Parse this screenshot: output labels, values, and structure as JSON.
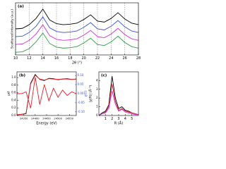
{
  "chart_data": [
    {
      "type": "line",
      "label": "(a)",
      "xlabel": "2θ (°)",
      "ylabel": "Scattered intensity (a.u.)",
      "x": [
        10,
        11,
        12,
        13,
        14,
        15,
        16,
        17,
        18,
        19,
        20,
        21,
        22,
        23,
        24,
        25,
        26,
        27,
        28
      ],
      "xlim": [
        10,
        28
      ],
      "xticks": [
        10,
        12,
        14,
        16,
        18,
        20,
        22,
        24,
        26,
        28
      ],
      "ylim": [
        0,
        10
      ],
      "grid": true,
      "series": [
        {
          "color": "#2e9e3e",
          "values": [
            0.5,
            0.6,
            1.2,
            2.5,
            4.2,
            2.2,
            1.5,
            1.3,
            1.4,
            1.6,
            2.3,
            3.2,
            2.0,
            1.8,
            2.5,
            3.6,
            2.4,
            1.6,
            1.3
          ]
        },
        {
          "color": "#d12fd1",
          "values": [
            2.0,
            2.1,
            2.8,
            4.0,
            5.8,
            3.7,
            3.0,
            2.8,
            2.9,
            3.1,
            3.8,
            4.7,
            3.5,
            3.3,
            4.0,
            5.1,
            3.9,
            3.1,
            2.8
          ]
        },
        {
          "color": "#3a4fd8",
          "values": [
            3.5,
            3.6,
            4.3,
            5.5,
            7.3,
            5.2,
            4.5,
            4.3,
            4.4,
            4.6,
            5.3,
            6.2,
            5.0,
            4.8,
            5.5,
            6.6,
            5.4,
            4.6,
            4.3
          ]
        },
        {
          "color": "#000000",
          "values": [
            5.0,
            5.1,
            5.8,
            7.0,
            8.8,
            6.7,
            6.0,
            5.8,
            5.9,
            6.1,
            6.8,
            7.7,
            6.5,
            6.3,
            7.0,
            8.1,
            6.9,
            6.1,
            5.8
          ]
        }
      ]
    },
    {
      "type": "line",
      "label": "(b)",
      "xlabel": "Energy (eV)",
      "ylabel": "μd",
      "y2label": "χ(E)",
      "x": [
        24320,
        24340,
        24360,
        24380,
        24400,
        24420,
        24440,
        24460,
        24480,
        24500,
        24520,
        24540,
        24560,
        24580
      ],
      "xlim": [
        24320,
        24580
      ],
      "xticks": [
        24350,
        24400,
        24450,
        24500,
        24550
      ],
      "ylim": [
        0,
        1.15
      ],
      "yticks": [
        {
          "value": 0,
          "label": "0.0"
        },
        {
          "value": 0.2,
          "label": "0.2"
        },
        {
          "value": 0.4,
          "label": "0.4"
        },
        {
          "value": 0.6,
          "label": "0.6"
        },
        {
          "value": 0.8,
          "label": "0.8"
        },
        {
          "value": 1,
          "label": "1.0"
        }
      ],
      "y2lim": [
        -0.12,
        0.12
      ],
      "y2ticks": [
        {
          "value": -0.1,
          "label": "-0.10"
        },
        {
          "value": -0.05,
          "label": "-0.05"
        },
        {
          "value": 0,
          "label": "0.00"
        },
        {
          "value": 0.05,
          "label": "0.05"
        },
        {
          "value": 0.1,
          "label": "0.10"
        }
      ],
      "series": [
        {
          "color": "#000000",
          "values": [
            0.02,
            0.03,
            0.05,
            0.85,
            1.08,
            0.95,
            0.92,
            0.98,
            0.97,
            0.94,
            0.96,
            0.97,
            0.95,
            0.96
          ]
        },
        {
          "color": "#e0202a",
          "values": [
            0.02,
            0.03,
            0.06,
            0.83,
            1.06,
            0.96,
            0.93,
            0.97,
            0.96,
            0.95,
            0.96,
            0.96,
            0.95,
            0.96
          ]
        },
        {
          "color": "#e0202a",
          "axis": "y2",
          "values": [
            0,
            0,
            0.01,
            -0.08,
            0.09,
            -0.06,
            0.05,
            -0.04,
            0.03,
            -0.02,
            0.02,
            -0.01,
            0.01,
            0
          ]
        }
      ]
    },
    {
      "type": "line",
      "label": "(c)",
      "xlabel": "R (Å)",
      "ylabel": "|χ(R)| (Å⁻³)",
      "x": [
        0,
        0.5,
        1,
        1.5,
        2,
        2.5,
        3,
        3.5,
        4,
        4.5,
        5,
        5.5,
        6
      ],
      "xlim": [
        0,
        6
      ],
      "xticks": [
        1,
        2,
        3,
        4,
        5
      ],
      "ylim": [
        0,
        5
      ],
      "yticks": [
        0,
        1,
        2,
        3,
        4
      ],
      "series": [
        {
          "color": "#000000",
          "values": [
            0,
            0.3,
            0.5,
            1.2,
            4.5,
            2.0,
            0.8,
            1.0,
            0.6,
            0.5,
            0.3,
            0.2,
            0.1
          ]
        },
        {
          "color": "#e0202a",
          "values": [
            0,
            0.2,
            0.4,
            1.0,
            3.6,
            1.6,
            0.6,
            0.8,
            0.5,
            0.4,
            0.3,
            0.2,
            0.1
          ]
        },
        {
          "color": "#d12fd1",
          "values": [
            0,
            0.2,
            0.3,
            0.8,
            2.8,
            1.3,
            0.5,
            0.7,
            0.4,
            0.3,
            0.2,
            0.1,
            0.1
          ]
        }
      ]
    }
  ]
}
